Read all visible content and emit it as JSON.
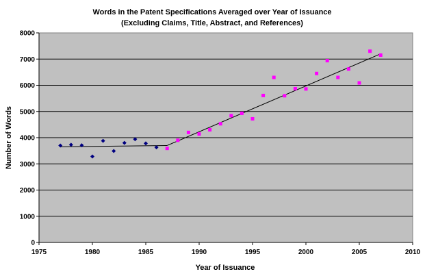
{
  "chart_data": {
    "type": "scatter",
    "title": "Words in the Patent Specifications Averaged over Year of Issuance",
    "subtitle": "(Excluding Claims, Title, Abstract, and References)",
    "xlabel": "Year of Issuance",
    "ylabel": "Number of Words",
    "xlim": [
      1975,
      2010
    ],
    "ylim": [
      0,
      8000
    ],
    "x_ticks": [
      "1975",
      "1980",
      "1985",
      "1990",
      "1995",
      "2000",
      "2005",
      "2010"
    ],
    "y_ticks": [
      "0",
      "1000",
      "2000",
      "3000",
      "4000",
      "5000",
      "6000",
      "7000",
      "8000"
    ],
    "grid": "horizontal",
    "legend": "none",
    "plot_background": "#c0c0c0",
    "series": [
      {
        "color": "#000080",
        "marker": "diamond",
        "points": [
          {
            "x": 1977,
            "y": 3700
          },
          {
            "x": 1978,
            "y": 3730
          },
          {
            "x": 1979,
            "y": 3710
          },
          {
            "x": 1980,
            "y": 3280
          },
          {
            "x": 1981,
            "y": 3880
          },
          {
            "x": 1982,
            "y": 3490
          },
          {
            "x": 1983,
            "y": 3800
          },
          {
            "x": 1984,
            "y": 3940
          },
          {
            "x": 1985,
            "y": 3780
          },
          {
            "x": 1986,
            "y": 3630
          }
        ]
      },
      {
        "color": "#ff00ff",
        "marker": "square",
        "points": [
          {
            "x": 1987,
            "y": 3590
          },
          {
            "x": 1988,
            "y": 3900
          },
          {
            "x": 1989,
            "y": 4200
          },
          {
            "x": 1990,
            "y": 4140
          },
          {
            "x": 1991,
            "y": 4300
          },
          {
            "x": 1992,
            "y": 4530
          },
          {
            "x": 1993,
            "y": 4840
          },
          {
            "x": 1994,
            "y": 4930
          },
          {
            "x": 1995,
            "y": 4720
          },
          {
            "x": 1996,
            "y": 5610
          },
          {
            "x": 1997,
            "y": 6300
          },
          {
            "x": 1998,
            "y": 5600
          },
          {
            "x": 1999,
            "y": 5870
          },
          {
            "x": 2000,
            "y": 5860
          },
          {
            "x": 2001,
            "y": 6450
          },
          {
            "x": 2002,
            "y": 6940
          },
          {
            "x": 2003,
            "y": 6300
          },
          {
            "x": 2004,
            "y": 6620
          },
          {
            "x": 2005,
            "y": 6090
          },
          {
            "x": 2006,
            "y": 7300
          },
          {
            "x": 2007,
            "y": 7150
          }
        ]
      }
    ],
    "trend_lines": [
      {
        "color": "#000000",
        "points": [
          {
            "x": 1977,
            "y": 3650
          },
          {
            "x": 1987,
            "y": 3700
          }
        ]
      },
      {
        "color": "#000000",
        "points": [
          {
            "x": 1987,
            "y": 3700
          },
          {
            "x": 2007,
            "y": 7200
          }
        ]
      }
    ]
  }
}
